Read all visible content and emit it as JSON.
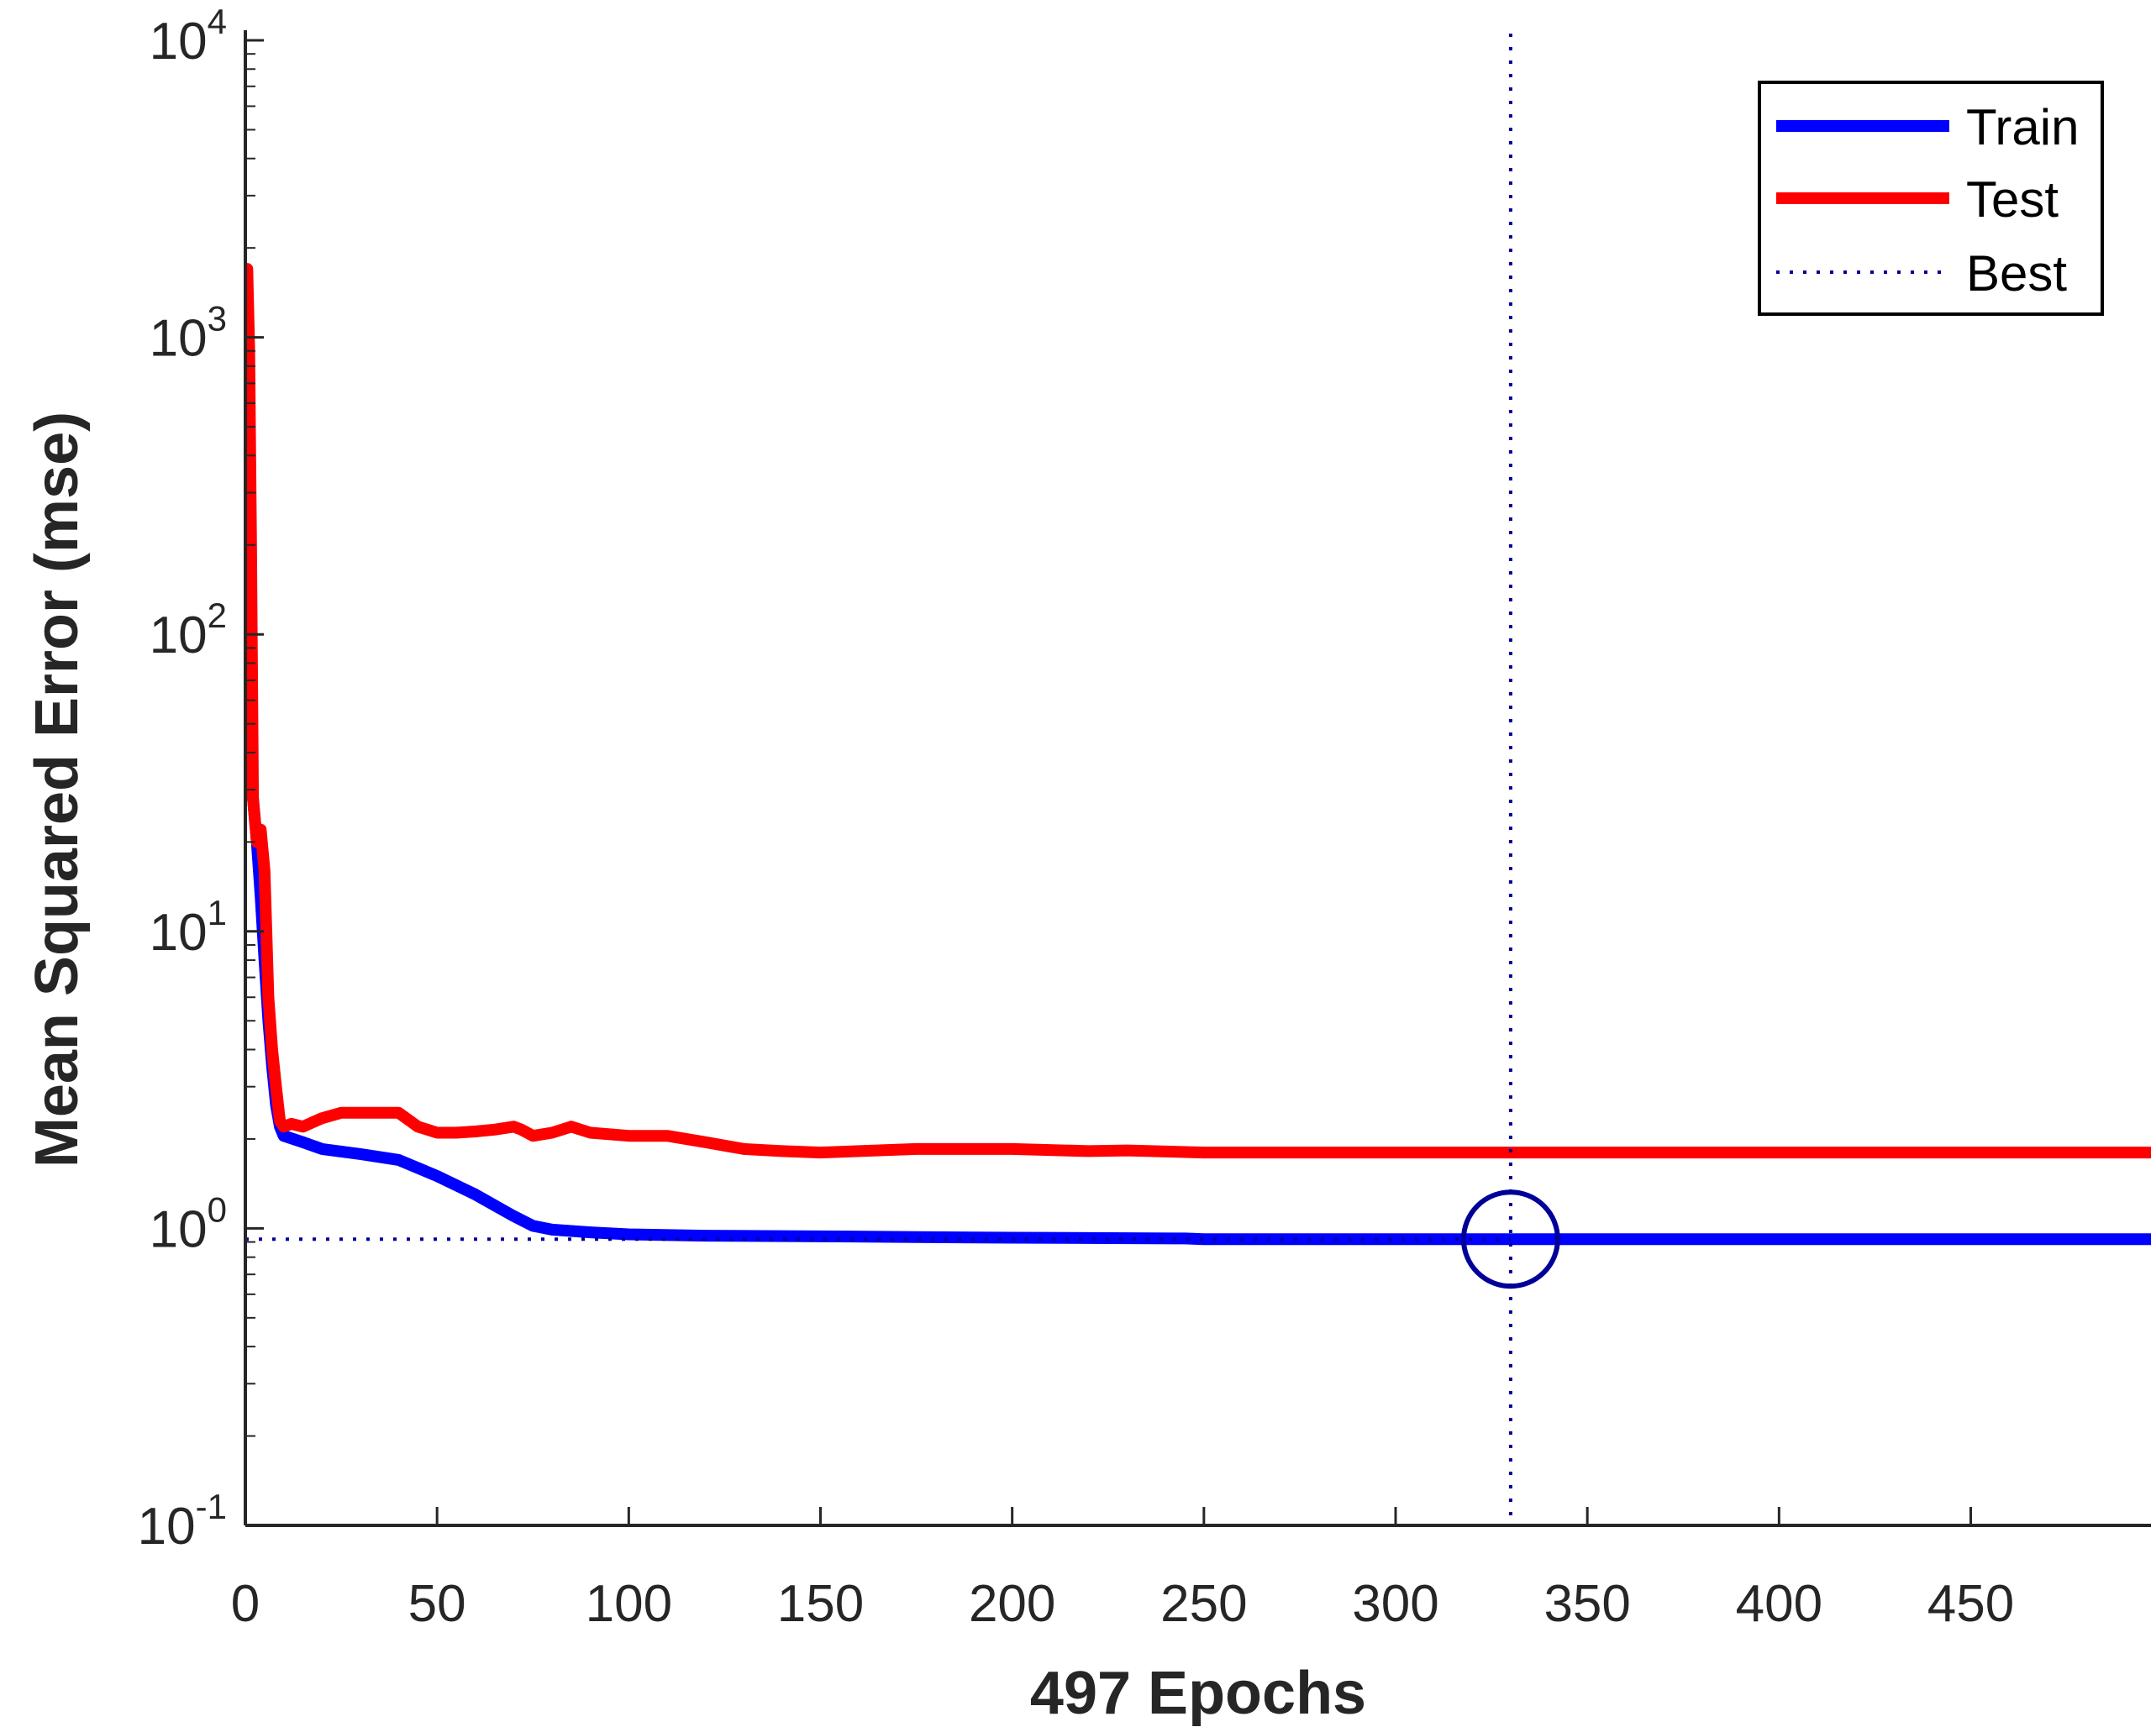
{
  "chart_data": {
    "type": "line",
    "title": "",
    "xlabel": "497 Epochs",
    "ylabel": "Mean Squared Error  (mse)",
    "xlim": [
      0,
      497
    ],
    "ylim": [
      0.1,
      10000
    ],
    "yscale": "log",
    "grid": false,
    "x_ticks": [
      0,
      50,
      100,
      150,
      200,
      250,
      300,
      350,
      400,
      450
    ],
    "x_tick_labels": [
      "0",
      "50",
      "100",
      "150",
      "200",
      "250",
      "300",
      "350",
      "400",
      "450"
    ],
    "y_ticks": [
      0.1,
      1,
      10,
      100,
      1000,
      10000
    ],
    "y_tick_labels": [
      {
        "base": "10",
        "exp": "-1"
      },
      {
        "base": "10",
        "exp": "0"
      },
      {
        "base": "10",
        "exp": "1"
      },
      {
        "base": "10",
        "exp": "2"
      },
      {
        "base": "10",
        "exp": "3"
      },
      {
        "base": "10",
        "exp": "4"
      }
    ],
    "legend_position": "top-right",
    "series": [
      {
        "name": "Train",
        "color": "#0000ff",
        "style": "solid",
        "x": [
          0,
          1,
          2,
          3,
          4,
          5,
          6,
          7,
          8,
          9,
          10,
          15,
          20,
          30,
          40,
          50,
          60,
          70,
          75,
          80,
          90,
          100,
          120,
          150,
          175,
          200,
          245,
          250,
          300,
          330,
          350,
          400,
          450,
          497
        ],
        "y": [
          40,
          35,
          28,
          20,
          13,
          8,
          5,
          3.5,
          2.6,
          2.2,
          2.05,
          1.95,
          1.85,
          1.78,
          1.7,
          1.5,
          1.3,
          1.1,
          1.02,
          0.99,
          0.97,
          0.955,
          0.945,
          0.94,
          0.935,
          0.93,
          0.925,
          0.92,
          0.92,
          0.92,
          0.92,
          0.92,
          0.92,
          0.92
        ]
      },
      {
        "name": "Test",
        "color": "#ff0000",
        "style": "solid",
        "x": [
          0,
          0.5,
          1,
          1.5,
          2,
          3,
          4,
          5,
          6,
          7,
          8,
          9,
          10,
          12,
          15,
          20,
          25,
          30,
          35,
          40,
          45,
          50,
          55,
          60,
          65,
          70,
          72,
          75,
          80,
          85,
          90,
          100,
          110,
          120,
          130,
          140,
          150,
          175,
          200,
          220,
          230,
          250,
          300,
          330,
          350,
          400,
          450,
          497
        ],
        "y": [
          50,
          1700,
          900,
          200,
          28,
          20,
          22,
          16,
          6,
          4,
          3,
          2.3,
          2.2,
          2.25,
          2.2,
          2.35,
          2.45,
          2.45,
          2.45,
          2.45,
          2.2,
          2.1,
          2.1,
          2.12,
          2.15,
          2.2,
          2.15,
          2.05,
          2.1,
          2.2,
          2.1,
          2.05,
          2.05,
          1.95,
          1.85,
          1.82,
          1.8,
          1.85,
          1.85,
          1.82,
          1.83,
          1.8,
          1.8,
          1.8,
          1.8,
          1.8,
          1.8,
          1.8
        ]
      }
    ],
    "best": {
      "name": "Best",
      "epoch": 330,
      "value": 0.92,
      "color": "#000099",
      "style": "dotted"
    }
  }
}
